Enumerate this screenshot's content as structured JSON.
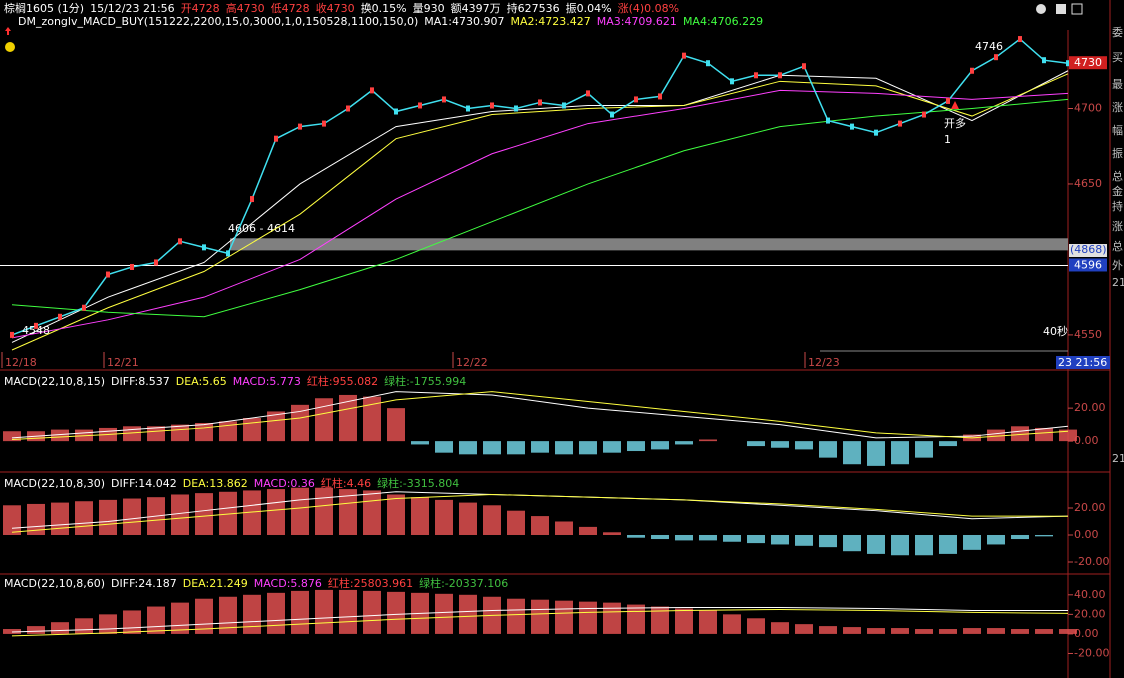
{
  "header": {
    "items": [
      {
        "text": "棕榈1605 (1分)",
        "color": "#ffffff"
      },
      {
        "text": "15/12/23 21:56",
        "color": "#ffffff"
      },
      {
        "text": "开4728",
        "color": "#ff4040"
      },
      {
        "text": "高4730",
        "color": "#ff4040"
      },
      {
        "text": "低4728",
        "color": "#ff4040"
      },
      {
        "text": "收4730",
        "color": "#ff4040"
      },
      {
        "text": "换0.15%",
        "color": "#ffffff"
      },
      {
        "text": "量930",
        "color": "#ffffff"
      },
      {
        "text": "额4397万",
        "color": "#ffffff"
      },
      {
        "text": "持627536",
        "color": "#ffffff"
      },
      {
        "text": "振0.04%",
        "color": "#ffffff"
      },
      {
        "text": "涨(4)0.08%",
        "color": "#ff4040"
      }
    ]
  },
  "legend": {
    "items": [
      {
        "text": "DM_zonglv_MACD_BUY(151222,2200,15,0,3000,1,0,150528,1100,150,0)",
        "color": "#ffffff"
      },
      {
        "text": "MA1:4730.907",
        "color": "#ffffff"
      },
      {
        "text": "MA2:4723.427",
        "color": "#ffff40"
      },
      {
        "text": "MA3:4709.621",
        "color": "#ff40ff"
      },
      {
        "text": "MA4:4706.229",
        "color": "#40ff40"
      }
    ]
  },
  "main_panel": {
    "ylim": [
      4540,
      4752
    ],
    "yticks": [
      4700,
      4650,
      4550
    ],
    "dates": [
      "12/18",
      "12/21",
      "12/22",
      "12/23"
    ],
    "price": {
      "color": "#40e0f0",
      "values": [
        4550,
        4556,
        4562,
        4568,
        4590,
        4595,
        4598,
        4612,
        4608,
        4604,
        4640,
        4680,
        4688,
        4690,
        4700,
        4712,
        4698,
        4702,
        4706,
        4700,
        4702,
        4700,
        4704,
        4702,
        4710,
        4696,
        4706,
        4708,
        4735,
        4730,
        4718,
        4722,
        4722,
        4728,
        4692,
        4688,
        4684,
        4690,
        4696,
        4705,
        4725,
        4734,
        4746,
        4732,
        4730
      ]
    },
    "ma_lines": [
      {
        "color": "#ffffff",
        "values": [
          4545,
          4575,
          4598,
          4650,
          4688,
          4698,
          4702,
          4702,
          4722,
          4720,
          4692,
          4725
        ]
      },
      {
        "color": "#ffff40",
        "values": [
          4540,
          4568,
          4592,
          4630,
          4680,
          4696,
          4700,
          4702,
          4718,
          4715,
          4695,
          4723
        ]
      },
      {
        "color": "#ff40ff",
        "values": [
          4548,
          4560,
          4575,
          4600,
          4640,
          4670,
          4690,
          4700,
          4712,
          4710,
          4706,
          4710
        ]
      },
      {
        "color": "#40ff40",
        "values": [
          4570,
          4565,
          4562,
          4580,
          4600,
          4625,
          4650,
          4672,
          4688,
          4695,
          4700,
          4706
        ]
      }
    ],
    "range_band": {
      "label": "4606 - 4614",
      "low": 4606,
      "high": 4614
    },
    "level_line": 4596,
    "last_price": 4730,
    "hold_label": "(4868)",
    "annotations": [
      "4746",
      "4548",
      "40秒",
      "开多",
      "1"
    ],
    "time_label": "23 21:56"
  },
  "side_labels": [
    "委",
    "买",
    "最",
    "涨",
    "幅",
    "振",
    "总",
    "金",
    "持",
    "涨",
    "总",
    "外",
    "21",
    "21"
  ],
  "macd_panels": [
    {
      "items": [
        {
          "text": "MACD(22,10,8,15)",
          "color": "#ffffff"
        },
        {
          "text": "DIFF:8.537",
          "color": "#ffffff"
        },
        {
          "text": "DEA:5.65",
          "color": "#ffff40"
        },
        {
          "text": "MACD:5.773",
          "color": "#ff40ff"
        },
        {
          "text": "红柱:955.082",
          "color": "#ff4040"
        },
        {
          "text": "绿柱:-1755.994",
          "color": "#40c040"
        }
      ],
      "ylim": [
        -17.5,
        31
      ],
      "yticks": [
        {
          "value": 20,
          "label": "20.00"
        },
        {
          "value": 0,
          "label": "0.00"
        }
      ],
      "histogram": [
        6,
        6,
        7,
        7,
        8,
        9,
        9,
        10,
        11,
        12,
        14,
        18,
        22,
        26,
        28,
        27,
        20,
        -2,
        -7,
        -8,
        -8,
        -8,
        -7,
        -8,
        -8,
        -7,
        -6,
        -5,
        -2,
        1,
        0,
        -3,
        -4,
        -5,
        -10,
        -14,
        -15,
        -14,
        -10,
        -3,
        4,
        7,
        9,
        8,
        7
      ],
      "diff": [
        2,
        6,
        10,
        18,
        30,
        28,
        20,
        15,
        10,
        2,
        3,
        9
      ],
      "dea": [
        1,
        4,
        8,
        14,
        25,
        30,
        24,
        18,
        12,
        5,
        2,
        6
      ]
    },
    {
      "items": [
        {
          "text": "MACD(22,10,8,30)",
          "color": "#ffffff"
        },
        {
          "text": "DIFF:14.042",
          "color": "#ffffff"
        },
        {
          "text": "DEA:13.862",
          "color": "#ffff40"
        },
        {
          "text": "MACD:0.36",
          "color": "#ff40ff"
        },
        {
          "text": "红柱:4.46",
          "color": "#ff4040"
        },
        {
          "text": "绿柱:-3315.804",
          "color": "#40c040"
        }
      ],
      "ylim": [
        -27.4,
        34.8
      ],
      "yticks": [
        {
          "value": 20,
          "label": "20.00"
        },
        {
          "value": 0,
          "label": "0.00"
        },
        {
          "value": -20,
          "label": "-20.00"
        }
      ],
      "histogram": [
        22,
        23,
        24,
        25,
        26,
        27,
        28,
        30,
        31,
        32,
        33,
        34,
        35,
        35,
        34,
        33,
        30,
        28,
        26,
        24,
        22,
        18,
        14,
        10,
        6,
        2,
        -2,
        -3,
        -4,
        -4,
        -5,
        -6,
        -7,
        -8,
        -9,
        -12,
        -14,
        -15,
        -15,
        -14,
        -11,
        -7,
        -3,
        -1,
        0
      ],
      "diff": [
        5,
        10,
        18,
        26,
        32,
        30,
        28,
        26,
        22,
        18,
        12,
        14
      ],
      "dea": [
        2,
        8,
        14,
        20,
        27,
        30,
        28,
        26,
        23,
        19,
        14,
        13.9
      ]
    },
    {
      "items": [
        {
          "text": "MACD(22,10,8,60)",
          "color": "#ffffff"
        },
        {
          "text": "DIFF:24.187",
          "color": "#ffffff"
        },
        {
          "text": "DEA:21.249",
          "color": "#ffff40"
        },
        {
          "text": "MACD:5.876",
          "color": "#ff40ff"
        },
        {
          "text": "红柱:25803.961",
          "color": "#ff4040"
        },
        {
          "text": "绿柱:-20337.106",
          "color": "#40c040"
        }
      ],
      "ylim": [
        -42,
        49
      ],
      "yticks": [
        {
          "value": 40,
          "label": "40.00"
        },
        {
          "value": 20,
          "label": "20.00"
        },
        {
          "value": 0,
          "label": "0.00"
        },
        {
          "value": -20,
          "label": "-20.00"
        }
      ],
      "histogram": [
        5,
        8,
        12,
        16,
        20,
        24,
        28,
        32,
        36,
        38,
        40,
        42,
        44,
        45,
        45,
        44,
        43,
        42,
        41,
        40,
        38,
        36,
        35,
        34,
        33,
        32,
        30,
        28,
        26,
        24,
        20,
        16,
        12,
        10,
        8,
        7,
        6,
        6,
        5,
        5,
        6,
        6,
        5,
        5,
        5
      ],
      "diff": [
        2,
        5,
        10,
        15,
        20,
        24,
        26,
        27,
        27,
        26,
        24,
        24
      ],
      "dea": [
        -2,
        1,
        5,
        10,
        15,
        19,
        22,
        24,
        25,
        24,
        22,
        21
      ]
    }
  ]
}
